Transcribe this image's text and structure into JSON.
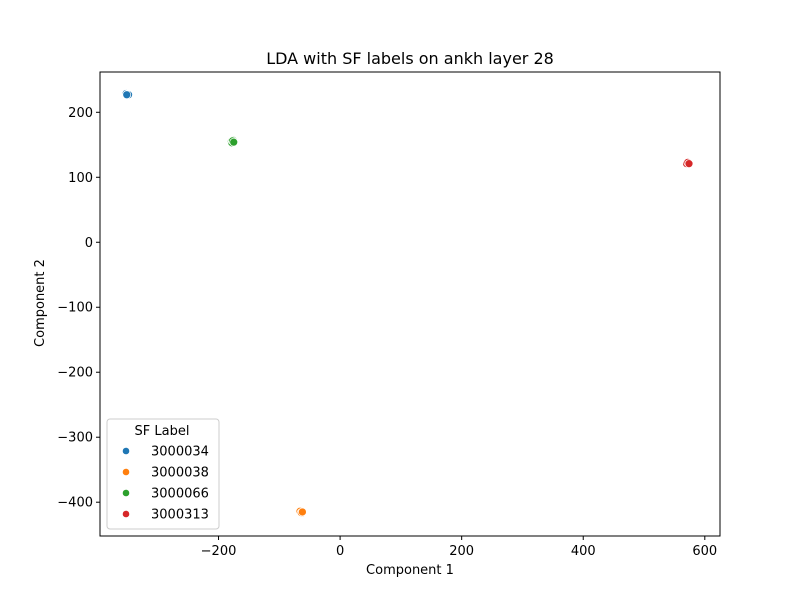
{
  "chart_data": {
    "type": "scatter",
    "title": "LDA with SF labels on ankh layer 28",
    "xlabel": "Component 1",
    "ylabel": "Component 2",
    "xlim": [
      -395,
      625
    ],
    "ylim": [
      -452,
      262
    ],
    "x_ticks": [
      -200,
      0,
      200,
      400,
      600
    ],
    "x_tick_labels": [
      "−200",
      "0",
      "200",
      "400",
      "600"
    ],
    "y_ticks": [
      -400,
      -300,
      -200,
      -100,
      0,
      100,
      200
    ],
    "y_tick_labels": [
      "−400",
      "−300",
      "−200",
      "−100",
      "0",
      "100",
      "200"
    ],
    "grid": false,
    "legend": {
      "title": "SF Label",
      "placement": "lower-left"
    },
    "series": [
      {
        "name": "3000034",
        "color": "#1f77b4",
        "points": [
          [
            -352,
            229
          ],
          [
            -349,
            226
          ],
          [
            -350,
            228
          ],
          [
            -348,
            227
          ],
          [
            -351,
            227
          ]
        ]
      },
      {
        "name": "3000038",
        "color": "#ff7f0e",
        "points": [
          [
            -65,
            -415
          ],
          [
            -63,
            -417
          ],
          [
            -66,
            -414
          ],
          [
            -64,
            -416
          ],
          [
            -62,
            -415
          ]
        ]
      },
      {
        "name": "3000066",
        "color": "#2ca02c",
        "points": [
          [
            -179,
            155
          ],
          [
            -176,
            157
          ],
          [
            -178,
            153
          ],
          [
            -177,
            156
          ],
          [
            -175,
            154
          ]
        ]
      },
      {
        "name": "3000313",
        "color": "#d62728",
        "points": [
          [
            571,
            122
          ],
          [
            573,
            120
          ],
          [
            570,
            121
          ],
          [
            572,
            123
          ],
          [
            574,
            121
          ]
        ]
      }
    ]
  }
}
